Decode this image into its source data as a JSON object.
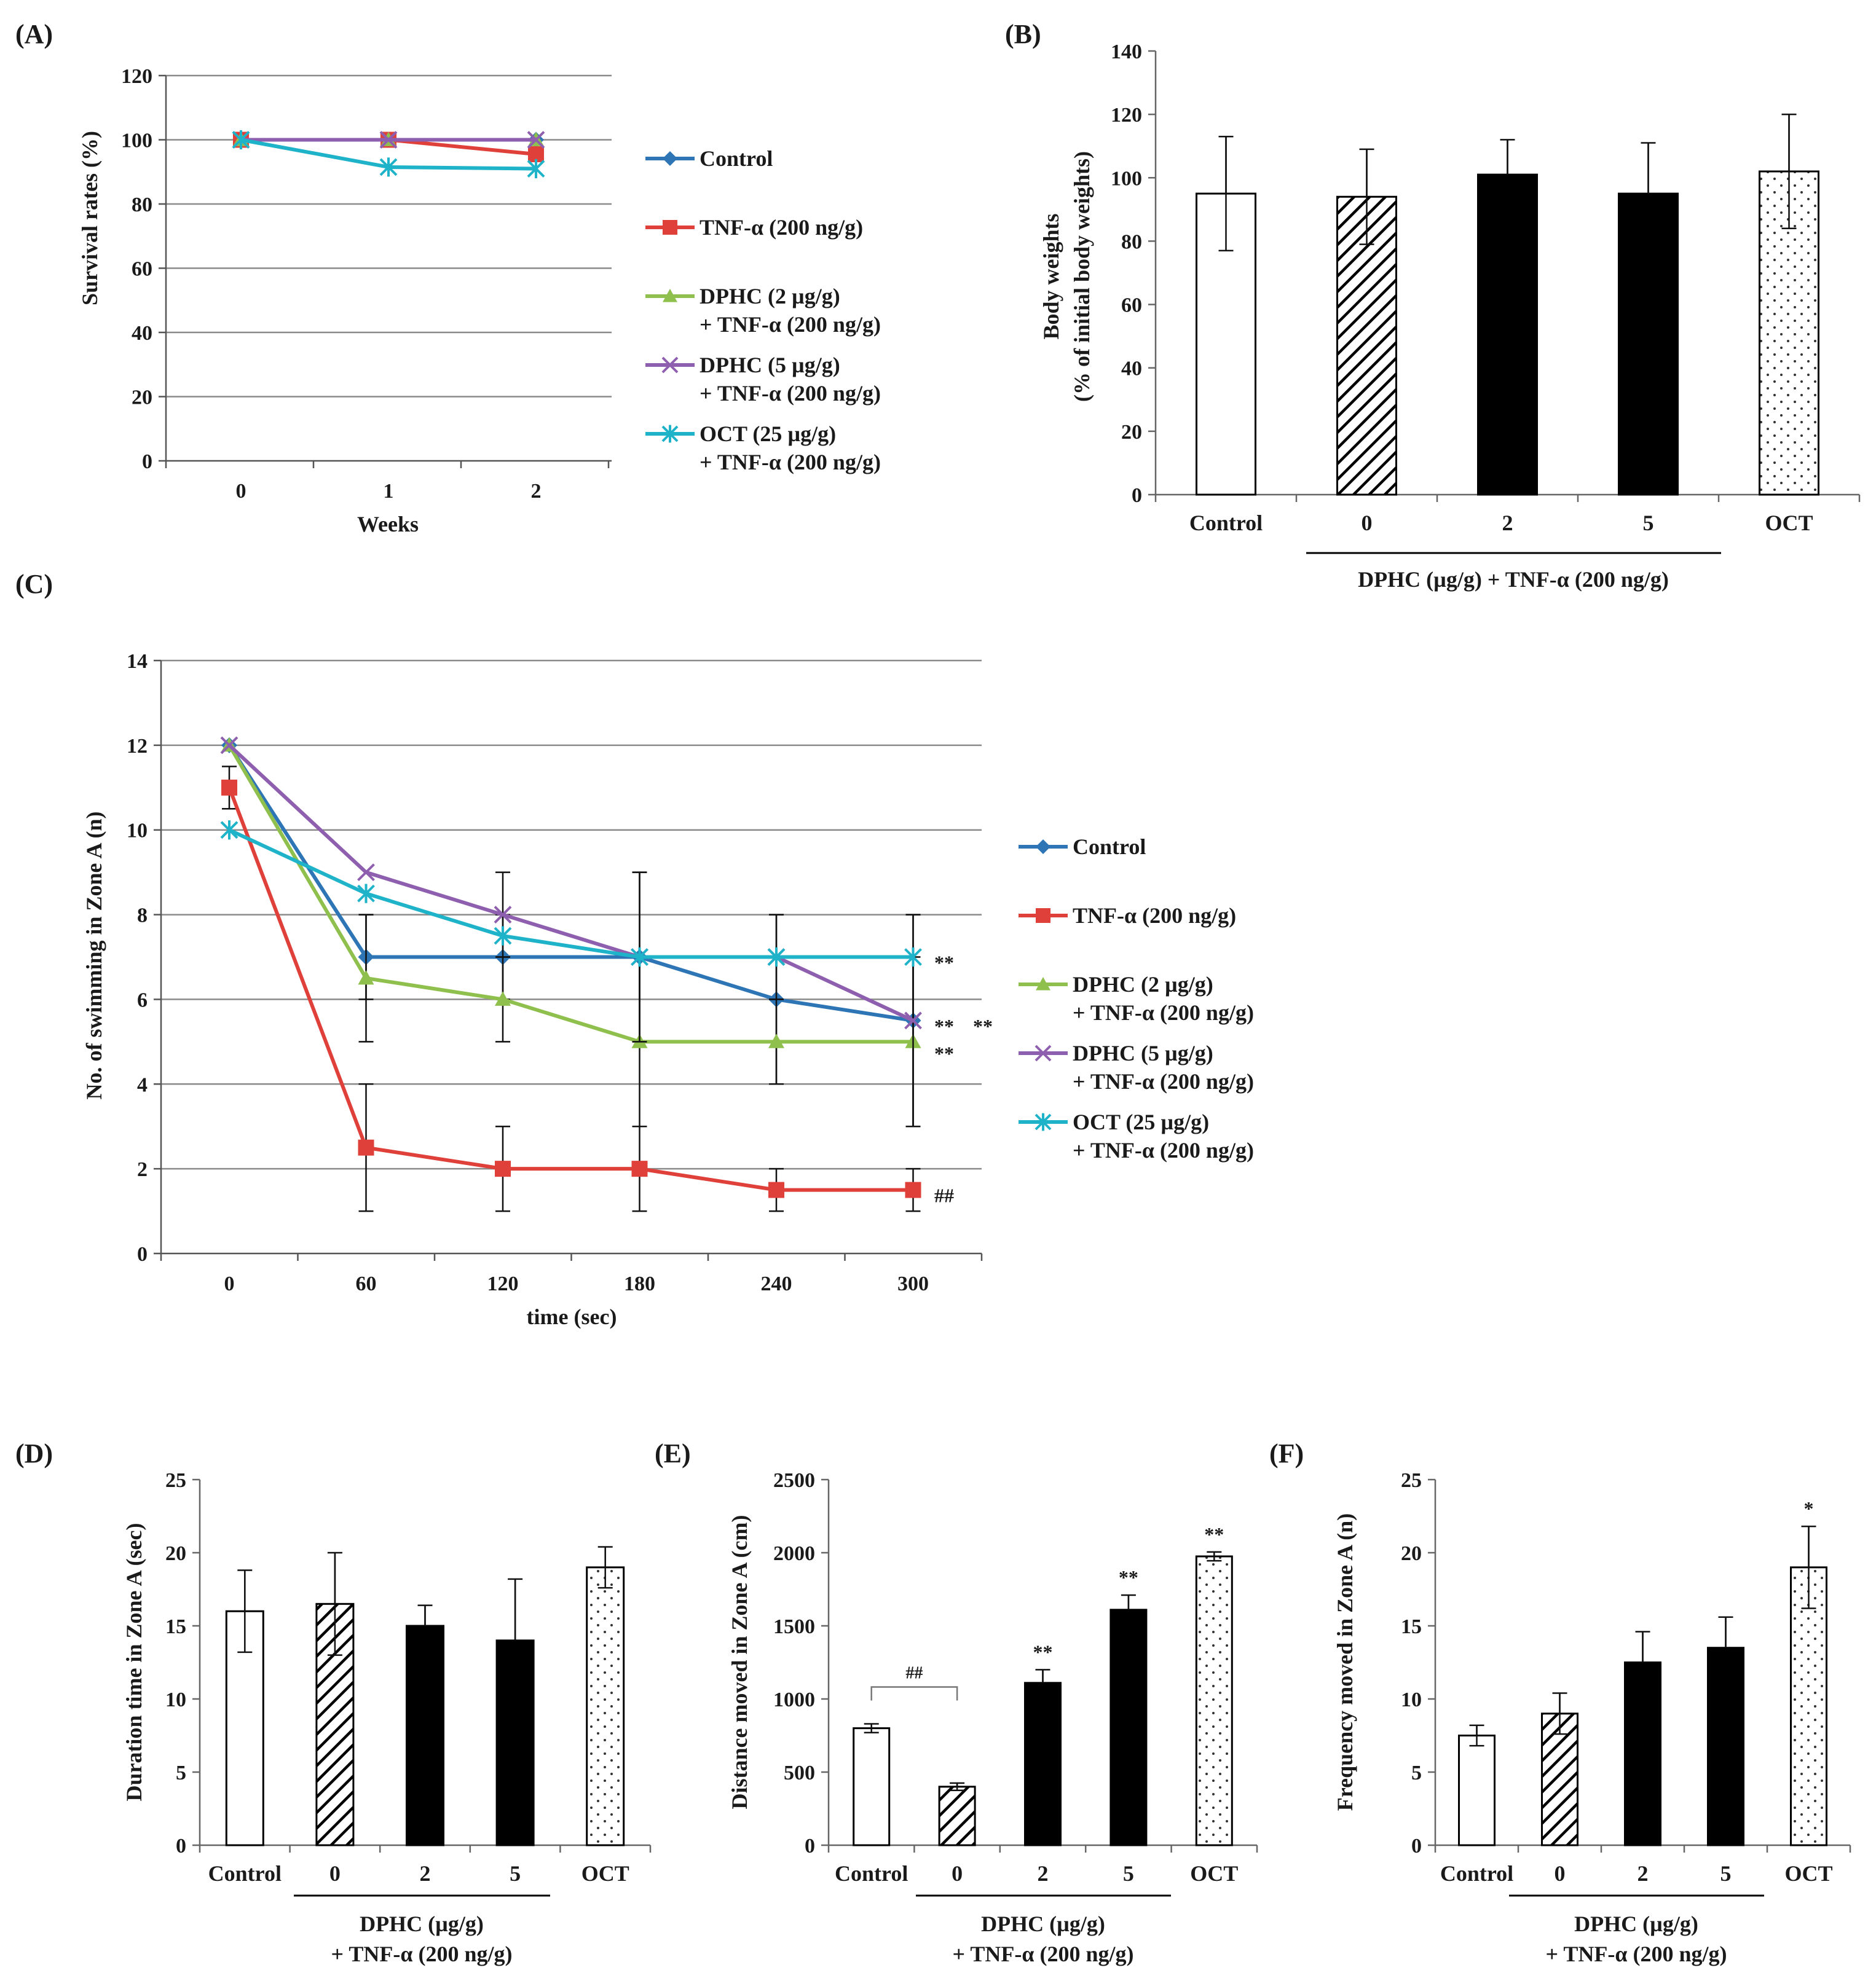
{
  "chart_data": [
    {
      "id": "A",
      "type": "line",
      "label": "(A)",
      "xlabel": "Weeks",
      "ylabel": "Survival rates (%)",
      "x": [
        0,
        1,
        2
      ],
      "x_tick_labels": [
        "0",
        "1",
        "2"
      ],
      "ylim": [
        0,
        120
      ],
      "y_ticks": [
        0,
        20,
        40,
        60,
        80,
        100,
        120
      ],
      "grid": true,
      "legend_position": "right",
      "series": [
        {
          "name": "Control",
          "name_line2": "",
          "color": "#2e75b6",
          "marker": "diamond",
          "values": [
            100,
            100,
            100
          ]
        },
        {
          "name": "TNF-α (200 ng/g)",
          "name_line2": "",
          "color": "#e0403a",
          "marker": "square",
          "values": [
            100,
            100,
            95.5
          ]
        },
        {
          "name": "DPHC (2 µg/g)",
          "name_line2": "+ TNF-α (200 ng/g)",
          "color": "#8fc04e",
          "marker": "triangle",
          "values": [
            100,
            100,
            100
          ]
        },
        {
          "name": "DPHC (5 µg/g)",
          "name_line2": "+ TNF-α (200 ng/g)",
          "color": "#8e5fae",
          "marker": "x",
          "values": [
            100,
            100,
            100
          ]
        },
        {
          "name": "OCT (25 µg/g)",
          "name_line2": "+ TNF-α (200 ng/g)",
          "color": "#1fb3c9",
          "marker": "star",
          "values": [
            100,
            91.5,
            91
          ]
        }
      ]
    },
    {
      "id": "B",
      "type": "bar",
      "label": "(B)",
      "ylabel": "Body weights",
      "ylabel2": "(% of initial body weights)",
      "categories": [
        "Control",
        "0",
        "2",
        "5",
        "OCT"
      ],
      "patterns": [
        "white",
        "hatch",
        "black",
        "black",
        "dots"
      ],
      "values": [
        95,
        94,
        101,
        95,
        102
      ],
      "errors": [
        18,
        15,
        11,
        16,
        18
      ],
      "ylim": [
        0,
        140
      ],
      "y_ticks": [
        0,
        20,
        40,
        60,
        80,
        100,
        120,
        140
      ],
      "group_label": "DPHC (µg/g) + TNF-α (200 ng/g)",
      "group_label2": ""
    },
    {
      "id": "C",
      "type": "line",
      "label": "(C)",
      "xlabel": "time (sec)",
      "ylabel": "No. of swimming in Zone A (n)",
      "x": [
        0,
        60,
        120,
        180,
        240,
        300
      ],
      "x_tick_labels": [
        "0",
        "60",
        "120",
        "180",
        "240",
        "300"
      ],
      "ylim": [
        0,
        14
      ],
      "y_ticks": [
        0,
        2,
        4,
        6,
        8,
        10,
        12,
        14
      ],
      "grid": true,
      "legend_position": "right",
      "annotations": [
        {
          "text": "**",
          "series": "OCT"
        },
        {
          "text": "**",
          "series": "Control"
        },
        {
          "text": "**",
          "series": "DPHC5"
        },
        {
          "text": "**",
          "series": "DPHC2"
        },
        {
          "text": "##",
          "series": "TNF"
        }
      ],
      "series": [
        {
          "name": "Control",
          "name_line2": "",
          "color": "#2e75b6",
          "marker": "diamond",
          "values": [
            12,
            7,
            7,
            7,
            6,
            5.5
          ],
          "errors": [
            0,
            1,
            1,
            2,
            2,
            2.5
          ]
        },
        {
          "name": "TNF-α (200 ng/g)",
          "name_line2": "",
          "color": "#e0403a",
          "marker": "square",
          "values": [
            11,
            2.5,
            2,
            2,
            1.5,
            1.5
          ],
          "errors": [
            0.5,
            1.5,
            1,
            1,
            0.5,
            0.5
          ]
        },
        {
          "name": "DPHC (2 µg/g)",
          "name_line2": "+ TNF-α (200 ng/g)",
          "color": "#8fc04e",
          "marker": "triangle",
          "values": [
            12,
            6.5,
            6,
            5,
            5,
            5
          ],
          "errors": [
            0,
            1.5,
            1,
            2,
            1,
            2
          ]
        },
        {
          "name": "DPHC (5 µg/g)",
          "name_line2": "+ TNF-α (200 ng/g)",
          "color": "#8e5fae",
          "marker": "x",
          "values": [
            12,
            9,
            8,
            7,
            7,
            5.5
          ],
          "errors": [
            0,
            0,
            1,
            2,
            1,
            2.5
          ]
        },
        {
          "name": "OCT (25 µg/g)",
          "name_line2": "+ TNF-α (200 ng/g)",
          "color": "#1fb3c9",
          "marker": "star",
          "values": [
            10,
            8.5,
            7.5,
            7,
            7,
            7
          ],
          "errors": [
            0,
            0,
            0,
            0,
            0,
            0
          ]
        }
      ]
    },
    {
      "id": "D",
      "type": "bar",
      "label": "(D)",
      "ylabel": "Duration time in Zone A (sec)",
      "categories": [
        "Control",
        "0",
        "2",
        "5",
        "OCT"
      ],
      "patterns": [
        "white",
        "hatch",
        "black",
        "black",
        "dots"
      ],
      "values": [
        16,
        16.5,
        15,
        14,
        19
      ],
      "errors": [
        2.8,
        3.5,
        1.4,
        4.2,
        1.4
      ],
      "ylim": [
        0,
        25
      ],
      "y_ticks": [
        0,
        5,
        10,
        15,
        20,
        25
      ],
      "group_label": "DPHC (µg/g)",
      "group_label2": "+ TNF-α (200 ng/g)"
    },
    {
      "id": "E",
      "type": "bar",
      "label": "(E)",
      "ylabel": "Distance moved in Zone A (cm)",
      "categories": [
        "Control",
        "0",
        "2",
        "5",
        "OCT"
      ],
      "patterns": [
        "white",
        "hatch",
        "black",
        "black",
        "dots"
      ],
      "values": [
        800,
        400,
        1110,
        1610,
        1975
      ],
      "errors": [
        30,
        25,
        90,
        100,
        30
      ],
      "ylim": [
        0,
        2500
      ],
      "y_ticks": [
        0,
        500,
        1000,
        1500,
        2000,
        2500
      ],
      "sig": [
        "",
        "",
        "**",
        "**",
        "**"
      ],
      "bracket_label": "##",
      "group_label": "DPHC (µg/g)",
      "group_label2": "+ TNF-α (200 ng/g)"
    },
    {
      "id": "F",
      "type": "bar",
      "label": "(F)",
      "ylabel": "Frequency moved in Zone A (n)",
      "categories": [
        "Control",
        "0",
        "2",
        "5",
        "OCT"
      ],
      "patterns": [
        "white",
        "hatch",
        "black",
        "black",
        "dots"
      ],
      "values": [
        7.5,
        9,
        12.5,
        13.5,
        19
      ],
      "errors": [
        0.7,
        1.4,
        2.1,
        2.1,
        2.8
      ],
      "ylim": [
        0,
        25
      ],
      "y_ticks": [
        0,
        5,
        10,
        15,
        20,
        25
      ],
      "sig": [
        "",
        "",
        "",
        "",
        "*"
      ],
      "group_label": "DPHC (µg/g)",
      "group_label2": "+ TNF-α (200 ng/g)"
    }
  ]
}
